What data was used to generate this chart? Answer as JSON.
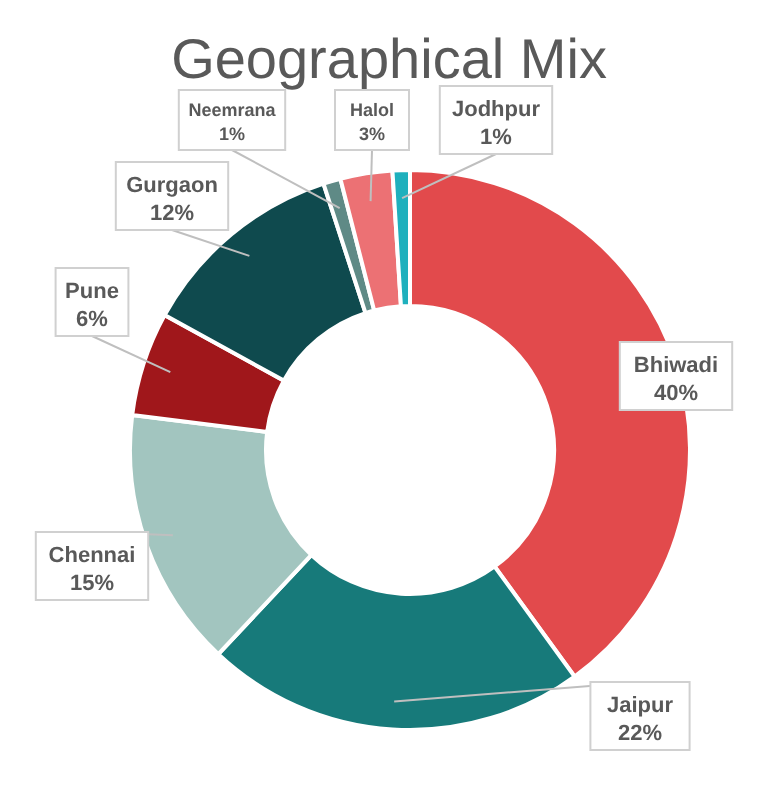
{
  "chart_data": {
    "type": "donut",
    "title": "Geographical Mix",
    "categories": [
      "Bhiwadi",
      "Jaipur",
      "Chennai",
      "Pune",
      "Gurgaon",
      "Neemrana",
      "Halol",
      "Jodhpur"
    ],
    "values": [
      40,
      22,
      15,
      6,
      12,
      1,
      3,
      1
    ],
    "colors": [
      "#e24a4c",
      "#177a7a",
      "#a2c5bf",
      "#a0171b",
      "#0f4a4e",
      "#5f8a86",
      "#ec7174",
      "#1fb0bd"
    ],
    "value_labels": [
      "40%",
      "22%",
      "15%",
      "6%",
      "12%",
      "1%",
      "3%",
      "1%"
    ]
  }
}
